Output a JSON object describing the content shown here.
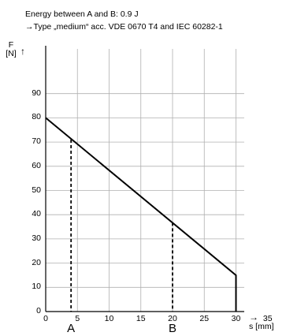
{
  "header": {
    "line1": "Energy between A and B: 0.9 J",
    "line2": "→Type „medium“ acc. VDE 0670 T4 and IEC 60282-1"
  },
  "chart_data": {
    "type": "line",
    "ylabel_name": "F",
    "ylabel_unit": "[N]",
    "ylabel_arrow": "↑",
    "xlabel_arrow": "→",
    "xlabel": "s [mm]",
    "xlim": [
      0,
      35
    ],
    "ylim": [
      0,
      90
    ],
    "x_ticks": [
      "0",
      "5",
      "10",
      "15",
      "20",
      "25",
      "30",
      "35"
    ],
    "y_ticks": [
      "0",
      "10",
      "20",
      "30",
      "40",
      "50",
      "60",
      "70",
      "80",
      "90"
    ],
    "grid": true,
    "series": [
      {
        "x": [
          0,
          30,
          30
        ],
        "y": [
          80,
          15,
          0
        ]
      }
    ],
    "markers": [
      {
        "label": "A",
        "x": 4,
        "y": 71
      },
      {
        "label": "B",
        "x": 20,
        "y": 36.7
      }
    ],
    "colors": {
      "line": "#000000",
      "grid": "#b0b0b0",
      "axis": "#000000"
    }
  }
}
